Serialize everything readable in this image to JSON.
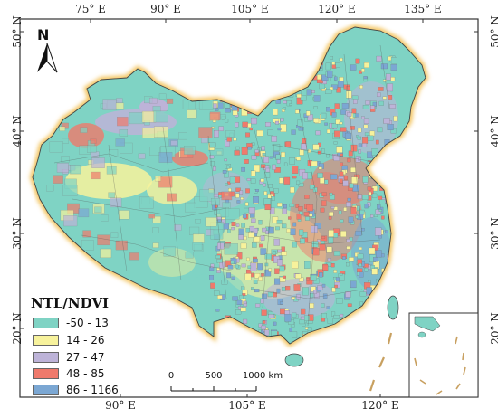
{
  "top_longitude_labels": [
    "75° E",
    "90° E",
    "105° E",
    "120° E",
    "135° E"
  ],
  "bottom_longitude_labels": [
    "90° E",
    "105° E",
    "120° E"
  ],
  "left_latitude_labels": [
    "50° N",
    "40° N",
    "30° N",
    "20° N"
  ],
  "right_latitude_labels": [
    "50° N",
    "40° N",
    "30° N",
    "20° N"
  ],
  "north_arrow": {
    "letter": "N",
    "icon": "north-arrow-icon"
  },
  "legend": {
    "title": "NTL/NDVI",
    "classes": [
      {
        "label": "-50 - 13",
        "color": "#7fd3c4"
      },
      {
        "label": "14 - 26",
        "color": "#f7f29c"
      },
      {
        "label": "27 - 47",
        "color": "#bdb3d8"
      },
      {
        "label": "48 - 85",
        "color": "#ef7a6c"
      },
      {
        "label": "86 - 1166",
        "color": "#7ba7d3"
      }
    ]
  },
  "scale_bar": {
    "ticks": [
      "0",
      "500",
      "1000 km"
    ]
  },
  "colors": {
    "frame": "#333333",
    "boundary_glow": "#f3c25a",
    "county_lines": "#555555"
  }
}
